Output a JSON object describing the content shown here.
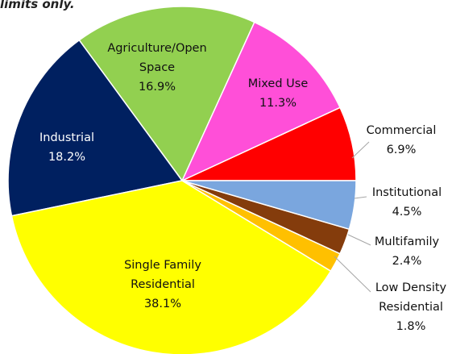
{
  "chart_data": {
    "type": "pie",
    "note": "limits only.",
    "categories": [
      "Commercial",
      "Mixed Use",
      "Agriculture/Open Space",
      "Industrial",
      "Single Family Residential",
      "Low Density Residential",
      "Multifamily",
      "Institutional"
    ],
    "values": [
      6.9,
      11.3,
      16.9,
      18.2,
      38.1,
      1.8,
      2.4,
      4.5
    ],
    "value_labels": [
      "6.9%",
      "11.3%",
      "16.9%",
      "18.2%",
      "38.1%",
      "1.8%",
      "2.4%",
      "4.5%"
    ],
    "colors": [
      "#ff0000",
      "#ff4fd8",
      "#92d050",
      "#002060",
      "#ffff00",
      "#ffc000",
      "#843c0c",
      "#7aa6de"
    ]
  }
}
